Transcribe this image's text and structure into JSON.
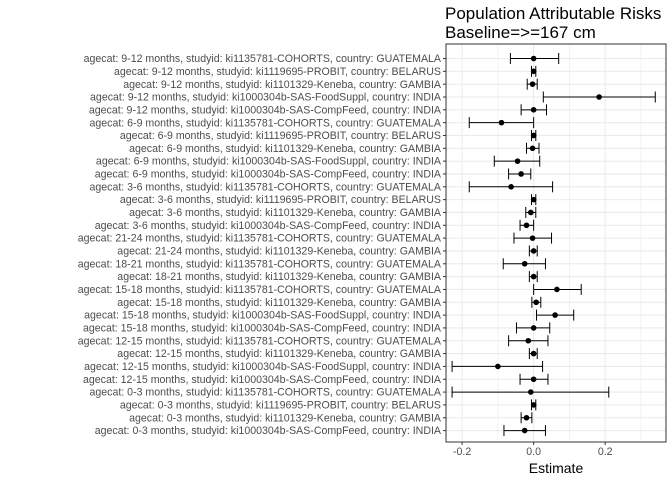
{
  "chart_data": {
    "type": "scatter",
    "title": "Population Attributable Risks\nBaseline=>=167 cm",
    "xlabel": "Estimate",
    "ylabel": "",
    "xlim": [
      -0.245,
      0.37
    ],
    "xticks": [
      -0.2,
      0.0,
      0.2
    ],
    "xtick_labels": [
      "-0.2",
      "0.0",
      "0.2"
    ],
    "grid": true,
    "colors": {
      "point": "#000000",
      "grid": "#ebebeb",
      "panel_border": "#333333"
    },
    "points": [
      {
        "label": "agecat: 9-12 months, studyid: ki1135781-COHORTS, country: GUATEMALA",
        "estimate": 0.0,
        "ci_lower": -0.065,
        "ci_upper": 0.07
      },
      {
        "label": "agecat: 9-12 months, studyid: ki1119695-PROBIT, country: BELARUS",
        "estimate": 0.0,
        "ci_lower": -0.006,
        "ci_upper": 0.006
      },
      {
        "label": "agecat: 9-12 months, studyid: ki1101329-Keneba, country: GAMBIA",
        "estimate": -0.003,
        "ci_lower": -0.018,
        "ci_upper": 0.01
      },
      {
        "label": "agecat: 9-12 months, studyid: ki1000304b-SAS-FoodSuppl, country: INDIA",
        "estimate": 0.183,
        "ci_lower": 0.027,
        "ci_upper": 0.34
      },
      {
        "label": "agecat: 9-12 months, studyid: ki1000304b-SAS-CompFeed, country: INDIA",
        "estimate": 0.0,
        "ci_lower": -0.035,
        "ci_upper": 0.036
      },
      {
        "label": "agecat: 6-9 months, studyid: ki1135781-COHORTS, country: GUATEMALA",
        "estimate": -0.09,
        "ci_lower": -0.18,
        "ci_upper": 0.0
      },
      {
        "label": "agecat: 6-9 months, studyid: ki1119695-PROBIT, country: BELARUS",
        "estimate": 0.0,
        "ci_lower": -0.006,
        "ci_upper": 0.006
      },
      {
        "label": "agecat: 6-9 months, studyid: ki1101329-Keneba, country: GAMBIA",
        "estimate": -0.003,
        "ci_lower": -0.02,
        "ci_upper": 0.015
      },
      {
        "label": "agecat: 6-9 months, studyid: ki1000304b-SAS-FoodSuppl, country: INDIA",
        "estimate": -0.045,
        "ci_lower": -0.11,
        "ci_upper": 0.017
      },
      {
        "label": "agecat: 6-9 months, studyid: ki1000304b-SAS-CompFeed, country: INDIA",
        "estimate": -0.035,
        "ci_lower": -0.07,
        "ci_upper": -0.008
      },
      {
        "label": "agecat: 3-6 months, studyid: ki1135781-COHORTS, country: GUATEMALA",
        "estimate": -0.063,
        "ci_lower": -0.18,
        "ci_upper": 0.053
      },
      {
        "label": "agecat: 3-6 months, studyid: ki1119695-PROBIT, country: BELARUS",
        "estimate": 0.0,
        "ci_lower": -0.006,
        "ci_upper": 0.006
      },
      {
        "label": "agecat: 3-6 months, studyid: ki1101329-Keneba, country: GAMBIA",
        "estimate": -0.008,
        "ci_lower": -0.022,
        "ci_upper": 0.006
      },
      {
        "label": "agecat: 3-6 months, studyid: ki1000304b-SAS-CompFeed, country: INDIA",
        "estimate": -0.02,
        "ci_lower": -0.038,
        "ci_upper": 0.0
      },
      {
        "label": "agecat: 21-24 months, studyid: ki1135781-COHORTS, country: GUATEMALA",
        "estimate": -0.003,
        "ci_lower": -0.055,
        "ci_upper": 0.05
      },
      {
        "label": "agecat: 21-24 months, studyid: ki1101329-Keneba, country: GAMBIA",
        "estimate": 0.0,
        "ci_lower": -0.012,
        "ci_upper": 0.01
      },
      {
        "label": "agecat: 18-21 months, studyid: ki1135781-COHORTS, country: GUATEMALA",
        "estimate": -0.025,
        "ci_lower": -0.085,
        "ci_upper": 0.033
      },
      {
        "label": "agecat: 18-21 months, studyid: ki1101329-Keneba, country: GAMBIA",
        "estimate": 0.0,
        "ci_lower": -0.012,
        "ci_upper": 0.01
      },
      {
        "label": "agecat: 15-18 months, studyid: ki1135781-COHORTS, country: GUATEMALA",
        "estimate": 0.065,
        "ci_lower": 0.0,
        "ci_upper": 0.133
      },
      {
        "label": "agecat: 15-18 months, studyid: ki1101329-Keneba, country: GAMBIA",
        "estimate": 0.007,
        "ci_lower": -0.005,
        "ci_upper": 0.02
      },
      {
        "label": "agecat: 15-18 months, studyid: ki1000304b-SAS-FoodSuppl, country: INDIA",
        "estimate": 0.06,
        "ci_lower": 0.008,
        "ci_upper": 0.112
      },
      {
        "label": "agecat: 15-18 months, studyid: ki1000304b-SAS-CompFeed, country: INDIA",
        "estimate": 0.0,
        "ci_lower": -0.048,
        "ci_upper": 0.045
      },
      {
        "label": "agecat: 12-15 months, studyid: ki1135781-COHORTS, country: GUATEMALA",
        "estimate": -0.015,
        "ci_lower": -0.07,
        "ci_upper": 0.04
      },
      {
        "label": "agecat: 12-15 months, studyid: ki1101329-Keneba, country: GAMBIA",
        "estimate": 0.0,
        "ci_lower": -0.012,
        "ci_upper": 0.01
      },
      {
        "label": "agecat: 12-15 months, studyid: ki1000304b-SAS-FoodSuppl, country: INDIA",
        "estimate": -0.1,
        "ci_lower": -0.228,
        "ci_upper": 0.025
      },
      {
        "label": "agecat: 12-15 months, studyid: ki1000304b-SAS-CompFeed, country: INDIA",
        "estimate": 0.0,
        "ci_lower": -0.038,
        "ci_upper": 0.04
      },
      {
        "label": "agecat: 0-3 months, studyid: ki1135781-COHORTS, country: GUATEMALA",
        "estimate": -0.008,
        "ci_lower": -0.228,
        "ci_upper": 0.21
      },
      {
        "label": "agecat: 0-3 months, studyid: ki1119695-PROBIT, country: BELARUS",
        "estimate": 0.0,
        "ci_lower": -0.006,
        "ci_upper": 0.006
      },
      {
        "label": "agecat: 0-3 months, studyid: ki1101329-Keneba, country: GAMBIA",
        "estimate": -0.02,
        "ci_lower": -0.035,
        "ci_upper": -0.005
      },
      {
        "label": "agecat: 0-3 months, studyid: ki1000304b-SAS-CompFeed, country: INDIA",
        "estimate": -0.025,
        "ci_lower": -0.083,
        "ci_upper": 0.033
      }
    ]
  }
}
